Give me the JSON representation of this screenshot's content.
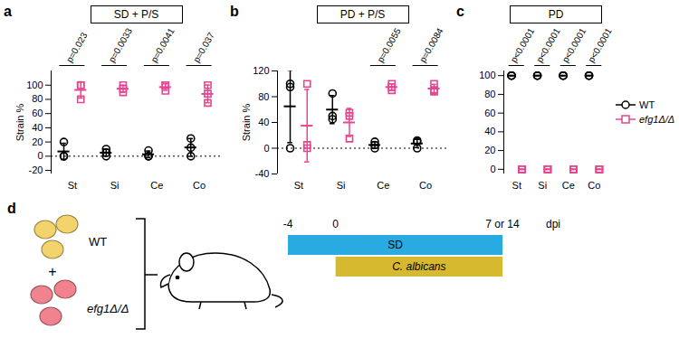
{
  "chart_data": [
    {
      "type": "scatter",
      "panel_label": "a",
      "title": "SD + P/S",
      "y_label": "Strain %",
      "categories": [
        "St",
        "Si",
        "Ce",
        "Co"
      ],
      "ylim": [
        -25,
        120
      ],
      "yticks": [
        -20,
        0,
        20,
        40,
        60,
        80,
        100
      ],
      "reference_y": 0,
      "p_values": [
        "p=0.023",
        "p=0.0033",
        "p=0.0041",
        "p=0.037"
      ],
      "series": [
        {
          "name": "WT",
          "color": "#000000",
          "marker": "circle",
          "values": [
            [
              20,
              0,
              0
            ],
            [
              10,
              5,
              0
            ],
            [
              8,
              0,
              0
            ],
            [
              25,
              12,
              0
            ]
          ],
          "mean": [
            6.7,
            5,
            2.7,
            12.3
          ],
          "error": [
            11.5,
            5,
            4.6,
            12.5
          ]
        },
        {
          "name": "efg1Δ/Δ",
          "color": "#e6468f",
          "marker": "square",
          "values": [
            [
              80,
              100,
              100
            ],
            [
              90,
              95,
              100
            ],
            [
              92,
              100,
              100
            ],
            [
              75,
              88,
              100
            ]
          ],
          "mean": [
            93.3,
            95,
            97.3,
            87.7
          ],
          "error": [
            11.5,
            5,
            4.6,
            12.5
          ]
        }
      ]
    },
    {
      "type": "scatter",
      "panel_label": "b",
      "title": "PD + P/S",
      "y_label": "Strain %",
      "categories": [
        "St",
        "Si",
        "Ce",
        "Co"
      ],
      "ylim": [
        -40,
        120
      ],
      "yticks": [
        -40,
        0,
        40,
        80,
        120
      ],
      "reference_y": 0,
      "p_values": [
        null,
        null,
        "p=0.0055",
        "p=0.0084"
      ],
      "series": [
        {
          "name": "WT",
          "color": "#000000",
          "marker": "circle",
          "values": [
            [
              0,
              95,
              100
            ],
            [
              45,
              50,
              85
            ],
            [
              0,
              5,
              10
            ],
            [
              0,
              10,
              12
            ]
          ],
          "mean": [
            65,
            60,
            5,
            7.3
          ],
          "error": [
            56.3,
            21.8,
            5,
            6.4
          ]
        },
        {
          "name": "efg1Δ/Δ",
          "color": "#e6468f",
          "marker": "square",
          "values": [
            [
              100,
              5,
              0
            ],
            [
              55,
              50,
              15
            ],
            [
              100,
              95,
              90
            ],
            [
              100,
              90,
              88
            ]
          ],
          "mean": [
            35,
            40,
            95,
            92.7
          ],
          "error": [
            56.3,
            21.8,
            5,
            6.4
          ]
        }
      ]
    },
    {
      "type": "scatter",
      "panel_label": "c",
      "title": "PD",
      "categories": [
        "St",
        "Si",
        "Ce",
        "Co"
      ],
      "ylim": [
        -5,
        105
      ],
      "yticks": [
        0,
        20,
        40,
        60,
        80,
        100
      ],
      "legend": "right",
      "p_values": [
        "p<0.0001",
        "p<0.0001",
        "p<0.0001",
        "p<0.0001"
      ],
      "series": [
        {
          "name": "WT",
          "color": "#000000",
          "marker": "circle",
          "values": [
            [
              100,
              100,
              100
            ],
            [
              100,
              100,
              100
            ],
            [
              100,
              100,
              100
            ],
            [
              100,
              100,
              100
            ]
          ],
          "mean": [
            100,
            100,
            100,
            100
          ],
          "error": [
            0,
            0,
            0,
            0
          ]
        },
        {
          "name": "efg1Δ/Δ",
          "color": "#e6468f",
          "marker": "square",
          "values": [
            [
              0,
              0,
              0
            ],
            [
              0,
              0,
              0
            ],
            [
              0,
              0,
              0
            ],
            [
              0,
              0,
              0
            ]
          ],
          "mean": [
            0,
            0,
            0,
            0
          ],
          "error": [
            0,
            0,
            0,
            0
          ]
        }
      ]
    }
  ],
  "diagram": {
    "panel_label": "d",
    "strains": [
      {
        "name": "WT",
        "color": "#f3d36b"
      },
      {
        "name": "efg1Δ/Δ",
        "color": "#f0838e"
      }
    ],
    "joiner": "+",
    "timeline": {
      "ticks": [
        -4,
        0,
        {
          "value": 14,
          "label": "7 or 14"
        }
      ],
      "unit": "dpi",
      "bars": [
        {
          "label": "SD",
          "start": -4,
          "end": 14,
          "color": "#29abe2"
        },
        {
          "label": "C. albicans",
          "start": 0,
          "end": 14,
          "color": "#d6b92e"
        }
      ]
    }
  }
}
